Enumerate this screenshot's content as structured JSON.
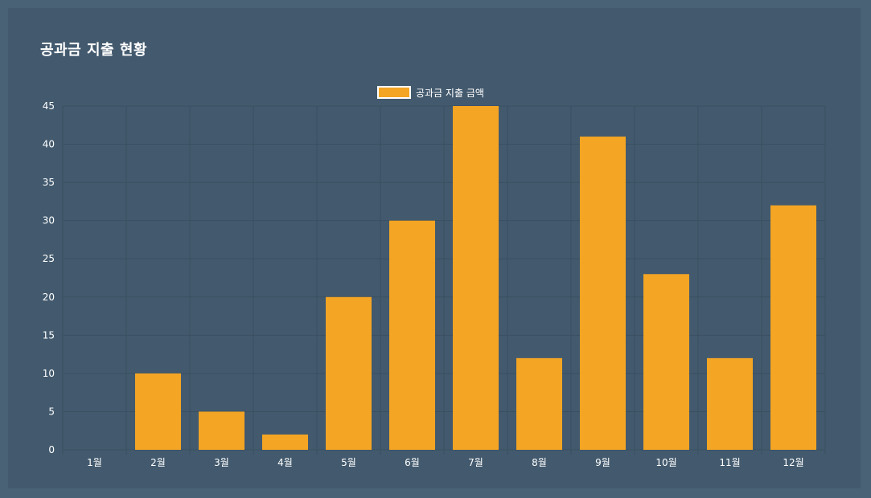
{
  "title": "공과금 지출 현황",
  "colors": {
    "background": "#4a6276",
    "panel": "#435a6e",
    "grid": "#3a4f60",
    "bar": "#f4a523",
    "text": "#ffffff"
  },
  "chart_data": {
    "type": "bar",
    "title": "공과금 지출 현황",
    "categories": [
      "1월",
      "2월",
      "3월",
      "4월",
      "5월",
      "6월",
      "7월",
      "8월",
      "9월",
      "10월",
      "11월",
      "12월"
    ],
    "series": [
      {
        "name": "공과금 지출 금액",
        "values": [
          0,
          10,
          5,
          2,
          20,
          30,
          45,
          12,
          41,
          23,
          12,
          32
        ]
      }
    ],
    "ylim": [
      0,
      45
    ],
    "yticks": [
      0,
      5,
      10,
      15,
      20,
      25,
      30,
      35,
      40,
      45
    ],
    "xlabel": "",
    "ylabel": "",
    "grid": true,
    "legend_position": "top-center"
  }
}
